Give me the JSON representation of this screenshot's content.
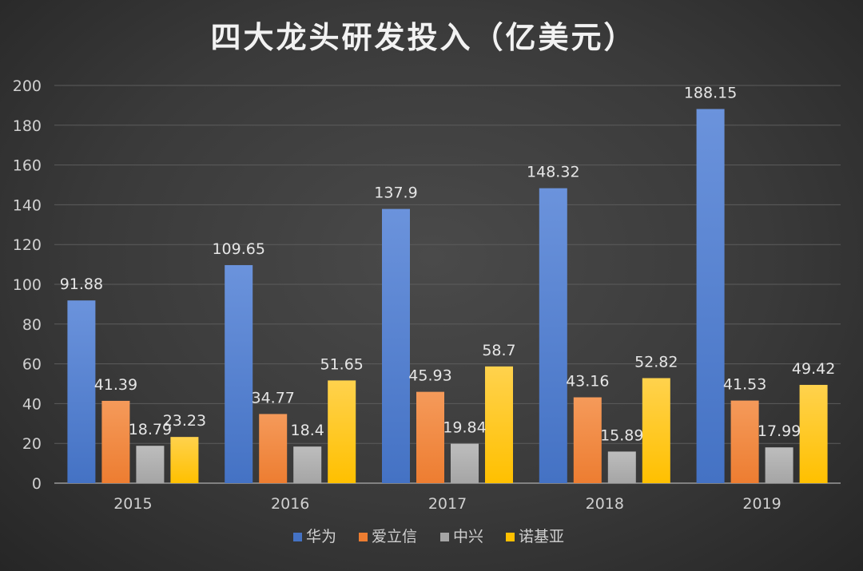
{
  "chart_data": {
    "type": "bar",
    "title": "四大龙头研发投入（亿美元）",
    "categories": [
      "2015",
      "2016",
      "2017",
      "2018",
      "2019"
    ],
    "series": [
      {
        "name": "华为",
        "values": [
          91.88,
          109.65,
          137.9,
          148.32,
          188.15
        ],
        "color": "#4472C4",
        "color_light": "#6B93DC"
      },
      {
        "name": "爱立信",
        "values": [
          41.39,
          34.77,
          45.93,
          43.16,
          41.53
        ],
        "color": "#ED7D31",
        "color_light": "#F59A5A"
      },
      {
        "name": "中兴",
        "values": [
          18.79,
          18.4,
          19.84,
          15.89,
          17.99
        ],
        "color": "#A5A5A5",
        "color_light": "#BDBDBD"
      },
      {
        "name": "诺基亚",
        "values": [
          23.23,
          51.65,
          58.7,
          52.82,
          49.42
        ],
        "color": "#FFC000",
        "color_light": "#FFD24D"
      }
    ],
    "data_labels": [
      [
        "91.88",
        "109.65",
        "137.9",
        "148.32",
        "188.15"
      ],
      [
        "41.39",
        "34.77",
        "45.93",
        "43.16",
        "41.53"
      ],
      [
        "18.79",
        "18.4",
        "19.84",
        "15.89",
        "17.99"
      ],
      [
        "23.23",
        "51.65",
        "58.7",
        "52.82",
        "49.42"
      ]
    ],
    "y_ticks": [
      "0",
      "20",
      "40",
      "60",
      "80",
      "100",
      "120",
      "140",
      "160",
      "180",
      "200"
    ],
    "ylim": [
      0,
      200
    ],
    "grid": true,
    "legend_position": "bottom"
  }
}
